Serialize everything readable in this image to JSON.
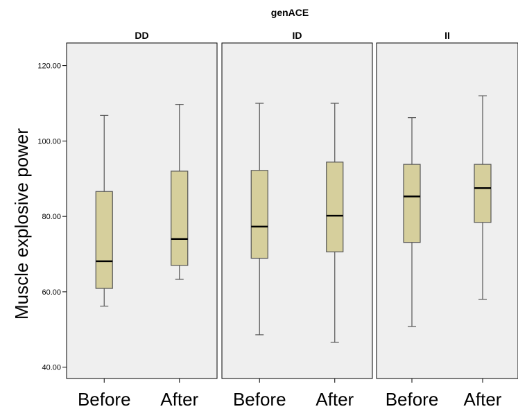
{
  "chart_data": {
    "type": "boxplot",
    "title": "genACE",
    "ylabel": "Muscle explosive power",
    "ylim": [
      37,
      126
    ],
    "yticks": [
      40,
      60,
      80,
      100,
      120
    ],
    "ytick_labels": [
      "40.00",
      "60.00",
      "80.00",
      "100.00",
      "120.00"
    ],
    "categories": [
      "Before",
      "After"
    ],
    "panels": [
      {
        "name": "DD",
        "boxes": [
          {
            "category": "Before",
            "min": 56.2,
            "q1": 60.9,
            "median": 68.1,
            "q3": 86.6,
            "max": 106.8
          },
          {
            "category": "After",
            "min": 63.3,
            "q1": 67.0,
            "median": 74.0,
            "q3": 92.0,
            "max": 109.7
          }
        ]
      },
      {
        "name": "ID",
        "boxes": [
          {
            "category": "Before",
            "min": 48.6,
            "q1": 68.9,
            "median": 77.3,
            "q3": 92.2,
            "max": 110.0
          },
          {
            "category": "After",
            "min": 46.6,
            "q1": 70.6,
            "median": 80.2,
            "q3": 94.4,
            "max": 110.0
          }
        ]
      },
      {
        "name": "II",
        "boxes": [
          {
            "category": "Before",
            "min": 50.8,
            "q1": 73.1,
            "median": 85.3,
            "q3": 93.8,
            "max": 106.2
          },
          {
            "category": "After",
            "min": 58.0,
            "q1": 78.4,
            "median": 87.5,
            "q3": 93.8,
            "max": 112.0
          }
        ]
      }
    ],
    "colors": {
      "box_fill": "#d6cf9c",
      "panel_background": "#efefef",
      "line": "#000000",
      "whisker": "#555555"
    },
    "grid": false
  }
}
